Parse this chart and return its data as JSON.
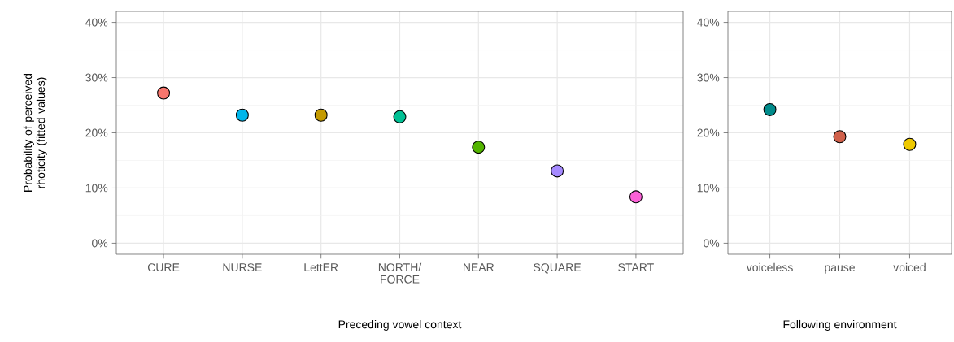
{
  "chart_data": [
    {
      "type": "scatter",
      "xlabel": "Preceding vowel context",
      "ylabel": "Probability of perceived rhoticity (fitted values)",
      "categories": [
        "CURE",
        "NURSE",
        "LettER",
        "NORTH/ FORCE",
        "NEAR",
        "SQUARE",
        "START"
      ],
      "values": [
        27.2,
        23.2,
        23.2,
        22.9,
        17.4,
        13.1,
        8.4
      ],
      "colors": [
        "#f8766d",
        "#00b6eb",
        "#c49a00",
        "#00c094",
        "#53b400",
        "#a58aff",
        "#fb61d7"
      ],
      "ylim": [
        -2,
        42
      ],
      "yticks": [
        {
          "value": 0,
          "label": "0%"
        },
        {
          "value": 10,
          "label": "10%"
        },
        {
          "value": 20,
          "label": "20%"
        },
        {
          "value": 30,
          "label": "30%"
        },
        {
          "value": 40,
          "label": "40%"
        }
      ],
      "grid": true,
      "marker": "circle"
    },
    {
      "type": "scatter",
      "xlabel": "Following environment",
      "categories": [
        "voiceless",
        "pause",
        "voiced"
      ],
      "values": [
        24.2,
        19.3,
        17.9
      ],
      "colors": [
        "#008b8b",
        "#d0604a",
        "#eec900"
      ],
      "ylim": [
        -2,
        42
      ],
      "yticks": [
        {
          "value": 0,
          "label": "0%"
        },
        {
          "value": 10,
          "label": "10%"
        },
        {
          "value": 20,
          "label": "20%"
        },
        {
          "value": 30,
          "label": "30%"
        },
        {
          "value": 40,
          "label": "40%"
        }
      ],
      "grid": true,
      "marker": "circle"
    }
  ]
}
